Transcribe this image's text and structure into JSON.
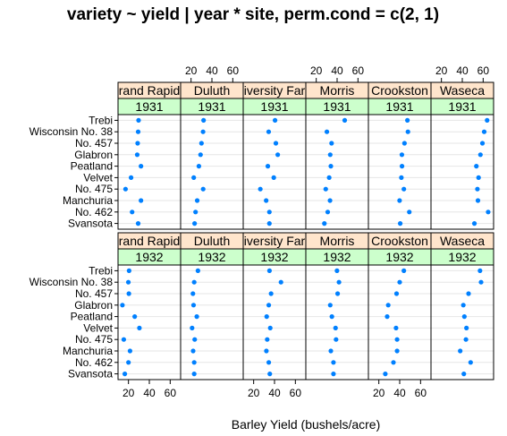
{
  "chart_data": {
    "type": "dotplot",
    "title": "variety ~ yield | year * site, perm.cond = c(2, 1)",
    "xlabel": "Barley Yield (bushels/acre)",
    "xticks": [
      20,
      40,
      60
    ],
    "xlim": [
      10,
      70
    ],
    "site_strip_labels": [
      "rand Rapid",
      "Duluth",
      "iversity Far",
      "Morris",
      "Crookston",
      "Waseca"
    ],
    "varieties": [
      "Trebi",
      "Wisconsin No. 38",
      "No. 457",
      "Glabron",
      "Peatland",
      "Velvet",
      "No. 475",
      "Manchuria",
      "No. 462",
      "Svansota"
    ],
    "rows": [
      {
        "year": "1931",
        "panels": [
          {
            "site": "Grand Rapids",
            "values": [
              29.7,
              29.3,
              28.8,
              28.4,
              32.0,
              22.5,
              17.2,
              32.0,
              23.5,
              29.3
            ]
          },
          {
            "site": "Duluth",
            "values": [
              32.0,
              31.5,
              30.0,
              29.1,
              27.5,
              22.6,
              31.6,
              25.9,
              24.3,
              23.4
            ]
          },
          {
            "site": "University Farm",
            "values": [
              40.5,
              34.4,
              41.3,
              43.1,
              33.6,
              39.3,
              26.4,
              32.0,
              35.1,
              35.1
            ]
          },
          {
            "site": "Morris",
            "values": [
              47.3,
              30.2,
              34.7,
              33.4,
              34.0,
              32.4,
              29.1,
              33.2,
              31.0,
              27.8
            ]
          },
          {
            "site": "Crookston",
            "values": [
              47.4,
              47.9,
              44.6,
              42.1,
              42.2,
              41.6,
              44.0,
              39.9,
              49.2,
              40.5
            ]
          },
          {
            "site": "Waseca",
            "values": [
              63.8,
              61.0,
              59.3,
              57.4,
              53.5,
              55.6,
              54.5,
              55.0,
              64.8,
              51.6
            ]
          }
        ]
      },
      {
        "year": "1932",
        "panels": [
          {
            "site": "Grand Rapids",
            "values": [
              20.6,
              19.9,
              20.4,
              14.2,
              26.0,
              30.5,
              15.5,
              21.5,
              20.0,
              16.5
            ]
          },
          {
            "site": "Duluth",
            "values": [
              26.6,
              23.0,
              21.8,
              22.4,
              25.5,
              21.0,
              23.5,
              22.0,
              23.0,
              23.0
            ]
          },
          {
            "site": "University Farm",
            "values": [
              35.2,
              46.2,
              36.7,
              34.5,
              32.5,
              35.9,
              33.0,
              32.2,
              34.5,
              35.5
            ]
          },
          {
            "site": "Morris",
            "values": [
              39.9,
              41.8,
              40.5,
              33.4,
              35.0,
              38.5,
              39.0,
              34.0,
              36.5,
              36.5
            ]
          },
          {
            "site": "Crookston",
            "values": [
              44.0,
              40.0,
              37.0,
              29.0,
              28.0,
              36.5,
              37.5,
              37.5,
              34.0,
              26.2
            ]
          },
          {
            "site": "Waseca",
            "values": [
              57.0,
              58.0,
              46.0,
              41.0,
              42.0,
              44.0,
              43.5,
              38.0,
              48.0,
              41.5
            ]
          }
        ]
      }
    ],
    "colors": {
      "dot": "#0080ff",
      "strip_site": "#ffe5cc",
      "strip_year": "#ccffcc",
      "grid": "#e6e6e6",
      "frame": "#000000"
    }
  }
}
